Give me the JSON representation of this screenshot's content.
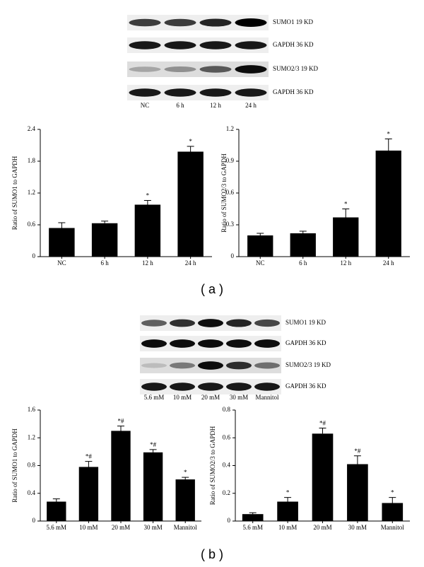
{
  "panels": [
    {
      "label": "( a )",
      "blot": {
        "rows": [
          "SUMO1 19 KD",
          "GAPDH 36 KD",
          "SUMO2/3 19 KD",
          "GAPDH 36 KD"
        ],
        "lanes": [
          "NC",
          "6 h",
          "12 h",
          "24 h"
        ]
      }
    },
    {
      "label": "( b )",
      "blot": {
        "rows": [
          "SUMO1 19 KD",
          "GAPDH 36 KD",
          "SUMO2/3 19 KD",
          "GAPDH 36 KD"
        ],
        "lanes": [
          "5.6 mM",
          "10 mM",
          "20 mM",
          "30 mM",
          "Mannitol"
        ]
      }
    }
  ],
  "chart_data": [
    {
      "type": "bar",
      "ylabel": "Ratio of SUMO1 to GAPDH",
      "categories": [
        "NC",
        "6 h",
        "12 h",
        "24 h"
      ],
      "values": [
        0.54,
        0.63,
        0.98,
        1.98
      ],
      "errors": [
        0.1,
        0.04,
        0.08,
        0.1
      ],
      "annotations": [
        null,
        null,
        "*",
        "*"
      ],
      "color": "#000000",
      "ylim": [
        0,
        2.4
      ],
      "yticks": [
        0,
        0.6,
        1.2,
        1.8,
        2.4
      ]
    },
    {
      "type": "bar",
      "ylabel": "Ratio of SUMO2/3 to GAPDH",
      "categories": [
        "NC",
        "6 h",
        "12 h",
        "24 h"
      ],
      "values": [
        0.2,
        0.22,
        0.37,
        1.0
      ],
      "errors": [
        0.02,
        0.02,
        0.08,
        0.11
      ],
      "annotations": [
        null,
        null,
        "*",
        "*"
      ],
      "color": "#000000",
      "ylim": [
        0,
        1.2
      ],
      "yticks": [
        0,
        0.3,
        0.6,
        0.9,
        1.2
      ]
    },
    {
      "type": "bar",
      "ylabel": "Ratio of SUMO1 to GAPDH",
      "categories": [
        "5.6 mM",
        "10 mM",
        "20 mM",
        "30 mM",
        "Mannitol"
      ],
      "values": [
        0.28,
        0.78,
        1.3,
        0.99,
        0.6
      ],
      "errors": [
        0.04,
        0.08,
        0.07,
        0.04,
        0.03
      ],
      "annotations": [
        null,
        "*#",
        "*#",
        "*#",
        "*"
      ],
      "color": "#000000",
      "ylim": [
        0,
        1.6
      ],
      "yticks": [
        0,
        0.4,
        0.8,
        1.2,
        1.6
      ]
    },
    {
      "type": "bar",
      "ylabel": "Ratio of SUMO2/3 to GAPDH",
      "categories": [
        "5.6 mM",
        "10 mM",
        "20 mM",
        "30 mM",
        "Mannitol"
      ],
      "values": [
        0.05,
        0.14,
        0.63,
        0.41,
        0.13
      ],
      "errors": [
        0.01,
        0.03,
        0.04,
        0.06,
        0.04
      ],
      "annotations": [
        null,
        "*",
        "*#",
        "*#",
        "*"
      ],
      "color": "#000000",
      "ylim": [
        0,
        0.8
      ],
      "yticks": [
        0,
        0.2,
        0.4,
        0.6,
        0.8
      ]
    }
  ]
}
